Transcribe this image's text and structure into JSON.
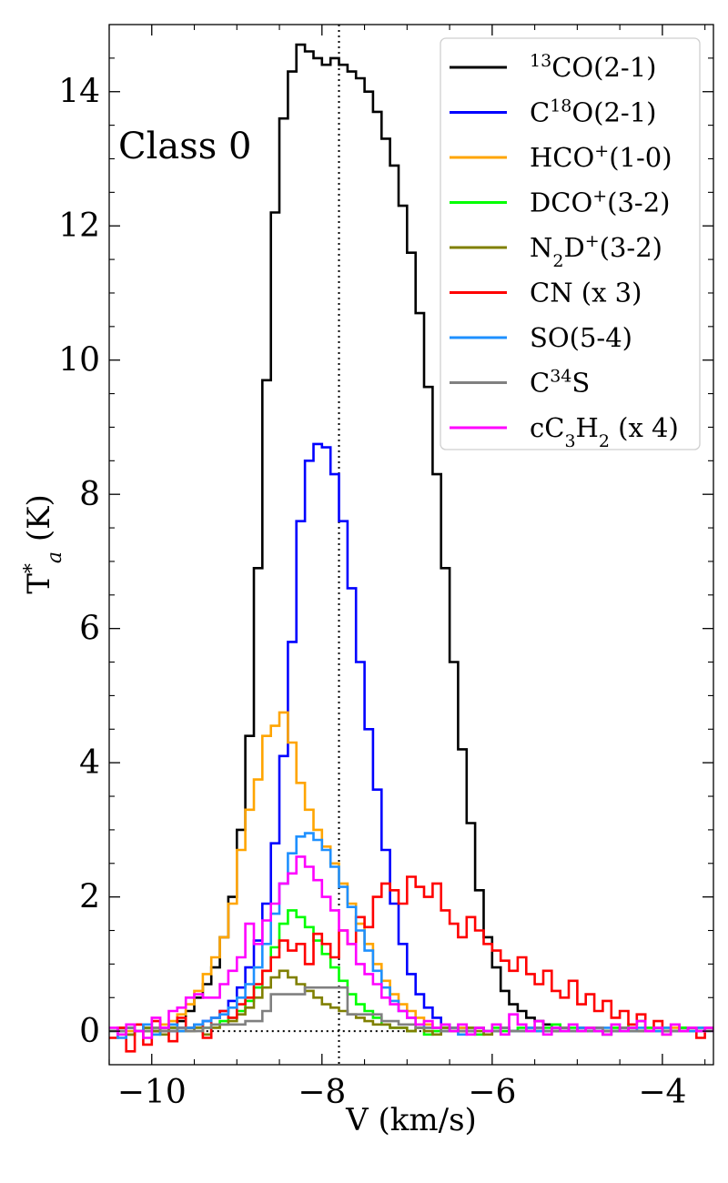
{
  "chart_data": {
    "type": "line",
    "xlabel": "V (km/s)",
    "ylabel": "T*a (K)",
    "annotation": "Class 0",
    "xlim": [
      -10.5,
      -3.4
    ],
    "ylim": [
      -0.5,
      15.0
    ],
    "x_ticks": [
      -10,
      -8,
      -6,
      -4
    ],
    "x_tick_labels": [
      "−10",
      "−8",
      "−6",
      "−4"
    ],
    "y_ticks": [
      0,
      2,
      4,
      6,
      8,
      10,
      12,
      14
    ],
    "y_tick_labels": [
      "0",
      "2",
      "4",
      "6",
      "8",
      "10",
      "12",
      "14"
    ],
    "vline": -7.8,
    "hline": 0,
    "legend_position": "top-right",
    "x": [
      -10.5,
      -10.4,
      -10.3,
      -10.2,
      -10.1,
      -10.0,
      -9.9,
      -9.8,
      -9.7,
      -9.6,
      -9.5,
      -9.4,
      -9.3,
      -9.2,
      -9.1,
      -9.0,
      -8.9,
      -8.8,
      -8.7,
      -8.6,
      -8.5,
      -8.4,
      -8.3,
      -8.2,
      -8.1,
      -8.0,
      -7.9,
      -7.8,
      -7.7,
      -7.6,
      -7.5,
      -7.4,
      -7.3,
      -7.2,
      -7.1,
      -7.0,
      -6.9,
      -6.8,
      -6.7,
      -6.6,
      -6.5,
      -6.4,
      -6.3,
      -6.2,
      -6.1,
      -6.0,
      -5.9,
      -5.8,
      -5.7,
      -5.6,
      -5.5,
      -5.4,
      -5.3,
      -5.2,
      -5.1,
      -5.0,
      -4.9,
      -4.8,
      -4.7,
      -4.6,
      -4.5,
      -4.4,
      -4.3,
      -4.2,
      -4.1,
      -4.0,
      -3.9,
      -3.8,
      -3.7,
      -3.6,
      -3.5,
      -3.4
    ],
    "series": [
      {
        "name": "13CO(2-1)",
        "color": "#000000",
        "values": [
          0.0,
          0.05,
          -0.05,
          0.0,
          0.05,
          0.0,
          0.05,
          0.1,
          0.15,
          0.3,
          0.5,
          0.7,
          0.95,
          1.4,
          2.0,
          3.0,
          4.4,
          6.9,
          9.7,
          12.2,
          13.6,
          14.3,
          14.7,
          14.6,
          14.5,
          14.4,
          14.5,
          14.4,
          14.3,
          14.2,
          14.0,
          13.7,
          13.3,
          12.9,
          12.3,
          11.6,
          10.7,
          9.6,
          8.3,
          6.9,
          5.5,
          4.2,
          3.1,
          2.1,
          1.4,
          0.95,
          0.6,
          0.4,
          0.3,
          0.2,
          0.15,
          0.1,
          0.05,
          0.05,
          0.0,
          0.05,
          0.0,
          0.0,
          -0.05,
          0.0,
          0.0,
          0.05,
          0.0,
          0.0,
          0.05,
          0.0,
          0.0,
          0.05,
          0.0,
          0.0,
          0.05,
          0.0
        ]
      },
      {
        "name": "C18O(2-1)",
        "color": "#0000ff",
        "values": [
          0.0,
          0.0,
          0.05,
          0.0,
          0.0,
          0.05,
          0.0,
          0.0,
          0.05,
          0.05,
          0.1,
          0.15,
          0.2,
          0.3,
          0.45,
          0.65,
          0.95,
          1.35,
          1.9,
          2.8,
          4.1,
          5.8,
          7.6,
          8.5,
          8.75,
          8.7,
          8.3,
          7.6,
          6.6,
          5.5,
          4.5,
          3.6,
          2.7,
          1.9,
          1.3,
          0.85,
          0.55,
          0.35,
          0.2,
          0.1,
          0.05,
          0.05,
          0.0,
          0.05,
          0.0,
          0.0,
          0.05,
          0.0,
          0.0,
          0.0,
          0.05,
          0.0,
          0.0,
          0.05,
          0.0,
          0.0,
          0.0,
          0.05,
          0.0,
          0.0,
          0.05,
          0.0,
          0.0,
          0.0,
          0.05,
          0.0,
          0.0,
          0.0,
          0.05,
          0.0,
          0.0,
          0.0
        ]
      },
      {
        "name": "HCO+(1-0)",
        "color": "#ffa500",
        "values": [
          0.0,
          0.05,
          0.0,
          0.1,
          0.0,
          0.05,
          0.1,
          0.15,
          0.25,
          0.4,
          0.6,
          0.85,
          1.1,
          1.4,
          1.9,
          2.7,
          3.3,
          3.75,
          4.4,
          4.55,
          4.75,
          4.3,
          3.7,
          3.3,
          3.0,
          2.75,
          2.5,
          2.2,
          1.9,
          1.6,
          1.3,
          1.0,
          0.75,
          0.55,
          0.4,
          0.3,
          0.2,
          0.1,
          0.05,
          0.05,
          0.0,
          0.05,
          0.0,
          0.05,
          0.0,
          0.0,
          0.05,
          0.0,
          0.0,
          0.05,
          0.0,
          0.0,
          0.05,
          0.0,
          0.0,
          0.0,
          0.05,
          0.0,
          0.0,
          0.05,
          0.0,
          0.0,
          0.0,
          0.05,
          0.0,
          0.0,
          0.05,
          0.0,
          0.0,
          0.0,
          0.05,
          0.0
        ]
      },
      {
        "name": "DCO+(3-2)",
        "color": "#00ff00",
        "values": [
          0.0,
          -0.05,
          0.05,
          0.0,
          0.05,
          -0.05,
          0.0,
          0.05,
          0.0,
          0.05,
          0.1,
          0.05,
          0.1,
          0.15,
          0.2,
          0.3,
          0.45,
          0.65,
          0.9,
          1.25,
          1.6,
          1.8,
          1.7,
          1.55,
          1.35,
          1.15,
          0.95,
          0.75,
          0.55,
          0.4,
          0.3,
          0.2,
          0.1,
          0.05,
          0.05,
          0.0,
          0.05,
          -0.05,
          0.0,
          0.05,
          0.0,
          0.0,
          0.05,
          -0.05,
          0.0,
          0.05,
          0.0,
          0.0,
          0.05,
          0.0,
          0.0,
          0.05,
          0.1,
          0.0,
          0.05,
          0.0,
          0.05,
          0.0,
          0.0,
          0.05,
          0.0,
          0.1,
          0.15,
          0.05,
          0.0,
          0.05,
          0.0,
          0.05,
          0.0,
          0.05,
          0.0,
          0.05
        ]
      },
      {
        "name": "N2D+(3-2)",
        "color": "#808000",
        "values": [
          0.0,
          0.05,
          -0.05,
          0.0,
          0.05,
          0.0,
          -0.05,
          0.05,
          0.0,
          0.0,
          0.05,
          -0.05,
          0.05,
          0.1,
          0.15,
          0.25,
          0.35,
          0.5,
          0.65,
          0.8,
          0.9,
          0.8,
          0.7,
          0.6,
          0.5,
          0.4,
          0.35,
          0.3,
          0.25,
          0.2,
          0.15,
          0.1,
          0.1,
          0.05,
          0.05,
          0.0,
          0.05,
          0.0,
          -0.05,
          0.05,
          0.0,
          0.0,
          0.05,
          0.0,
          -0.05,
          0.0,
          0.05,
          0.0,
          0.0,
          0.05,
          0.0,
          0.0,
          0.0,
          0.05,
          0.0,
          0.0,
          0.05,
          0.0,
          0.0,
          0.0,
          0.05,
          0.0,
          0.0,
          0.0,
          0.05,
          0.0,
          0.0,
          0.0,
          0.05,
          0.0,
          0.0,
          0.0
        ]
      },
      {
        "name": "CN (x 3)",
        "color": "#ff0000",
        "values": [
          -0.1,
          0.05,
          -0.3,
          0.1,
          -0.2,
          0.15,
          0.0,
          -0.15,
          0.2,
          0.05,
          0.1,
          -0.1,
          0.2,
          0.3,
          0.2,
          0.4,
          0.5,
          0.7,
          0.9,
          1.1,
          1.35,
          1.2,
          1.3,
          1.0,
          1.45,
          1.3,
          1.1,
          1.5,
          1.3,
          1.7,
          1.55,
          2.0,
          2.2,
          2.1,
          1.9,
          2.3,
          2.15,
          2.0,
          2.2,
          1.8,
          1.6,
          1.4,
          1.7,
          1.5,
          1.3,
          1.2,
          1.05,
          0.9,
          1.1,
          0.85,
          0.7,
          0.9,
          0.6,
          0.5,
          0.75,
          0.4,
          0.55,
          0.3,
          0.45,
          0.2,
          0.3,
          0.1,
          0.25,
          0.0,
          0.15,
          -0.05,
          0.1,
          0.0,
          0.05,
          -0.1,
          0.0,
          0.05
        ]
      },
      {
        "name": "SO(5-4)",
        "color": "#1e90ff",
        "values": [
          0.0,
          -0.1,
          0.05,
          0.0,
          0.1,
          -0.05,
          0.05,
          0.1,
          0.0,
          0.05,
          0.1,
          0.15,
          0.2,
          0.25,
          0.35,
          0.5,
          0.7,
          0.95,
          1.3,
          1.75,
          2.2,
          2.65,
          2.9,
          2.95,
          2.85,
          2.7,
          2.45,
          2.15,
          1.85,
          1.5,
          1.2,
          0.9,
          0.65,
          0.45,
          0.3,
          0.2,
          0.1,
          0.05,
          0.05,
          0.0,
          0.05,
          -0.05,
          0.0,
          0.05,
          0.0,
          0.0,
          0.05,
          0.0,
          0.0,
          0.05,
          0.0,
          0.0,
          0.05,
          0.0,
          0.0,
          0.05,
          0.0,
          0.0,
          0.05,
          0.0,
          0.0,
          0.0,
          0.05,
          0.0,
          0.0,
          0.05,
          0.0,
          0.0,
          0.0,
          0.05,
          0.0,
          0.0
        ]
      },
      {
        "name": "C34S",
        "color": "#808080",
        "values": [
          0.0,
          0.0,
          0.05,
          0.0,
          0.0,
          0.05,
          0.0,
          0.0,
          0.05,
          0.0,
          0.0,
          0.05,
          0.1,
          0.1,
          0.1,
          0.1,
          0.15,
          0.15,
          0.3,
          0.55,
          0.55,
          0.55,
          0.55,
          0.65,
          0.65,
          0.65,
          0.65,
          0.65,
          0.25,
          0.25,
          0.25,
          0.25,
          0.15,
          0.15,
          0.1,
          0.1,
          0.05,
          0.05,
          0.05,
          0.0,
          0.05,
          0.0,
          0.0,
          0.05,
          0.0,
          0.0,
          0.05,
          0.0,
          0.0,
          0.0,
          0.05,
          0.0,
          0.0,
          0.05,
          0.0,
          0.0,
          0.0,
          0.05,
          0.0,
          0.0,
          0.05,
          0.0,
          0.0,
          0.0,
          0.05,
          0.0,
          0.0,
          0.0,
          0.05,
          0.0,
          0.0,
          0.0
        ]
      },
      {
        "name": "cC3H2 (x 4)",
        "color": "#ff00ff",
        "values": [
          0.05,
          -0.05,
          0.1,
          0.0,
          -0.1,
          0.2,
          0.05,
          0.3,
          0.35,
          0.5,
          0.55,
          0.5,
          0.5,
          0.7,
          0.9,
          1.1,
          1.6,
          1.3,
          1.65,
          1.9,
          2.2,
          2.35,
          2.6,
          2.45,
          2.25,
          2.0,
          1.8,
          1.5,
          1.3,
          1.0,
          0.85,
          0.7,
          0.5,
          0.4,
          0.3,
          0.2,
          0.1,
          0.15,
          0.05,
          0.1,
          0.0,
          0.1,
          -0.05,
          0.05,
          0.0,
          0.1,
          -0.05,
          0.25,
          0.1,
          0.0,
          0.15,
          -0.05,
          0.05,
          0.0,
          0.1,
          0.0,
          0.05,
          0.0,
          -0.05,
          0.1,
          0.0,
          0.05,
          0.15,
          0.0,
          0.05,
          -0.05,
          0.1,
          0.0,
          0.05,
          0.0,
          0.05,
          0.0
        ]
      }
    ]
  },
  "legend_items": [
    {
      "pre": "",
      "sup1": "13",
      "mid": "CO(2-1)",
      "sub": "",
      "sup2": "",
      "post": ""
    },
    {
      "pre": "C",
      "sup1": "18",
      "mid": "O(2-1)",
      "sub": "",
      "sup2": "",
      "post": ""
    },
    {
      "pre": "HCO",
      "sup1": "+",
      "mid": "(1-0)",
      "sub": "",
      "sup2": "",
      "post": ""
    },
    {
      "pre": "DCO",
      "sup1": "+",
      "mid": "(3-2)",
      "sub": "",
      "sup2": "",
      "post": ""
    },
    {
      "pre": "N",
      "sup1": "",
      "mid": "",
      "sub": "2",
      "sup2": "D",
      "post": "+(3-2)"
    },
    {
      "pre": "CN (x 3)",
      "sup1": "",
      "mid": "",
      "sub": "",
      "sup2": "",
      "post": ""
    },
    {
      "pre": "SO(5-4)",
      "sup1": "",
      "mid": "",
      "sub": "",
      "sup2": "",
      "post": ""
    },
    {
      "pre": "C",
      "sup1": "34",
      "mid": "S",
      "sub": "",
      "sup2": "",
      "post": ""
    },
    {
      "pre": "cC",
      "sup1": "",
      "mid": "",
      "sub": "3",
      "sup2": "H",
      "post": "2 (x 4)"
    }
  ]
}
